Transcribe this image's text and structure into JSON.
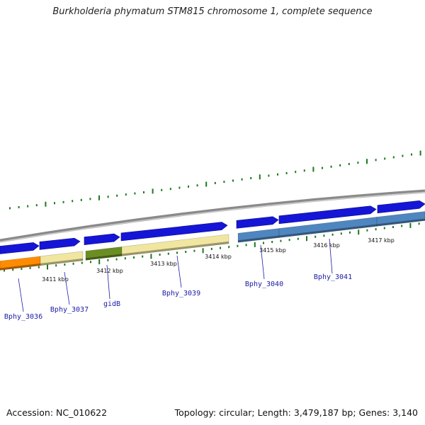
{
  "title": "Burkholderia phymatum STM815 chromosome 1, complete sequence",
  "footer": {
    "accession": "Accession: NC_010622",
    "summary": "Topology: circular; Length: 3,479,187 bp; Genes: 3,140"
  },
  "colors": {
    "backbone": "#8a8a8a",
    "forward_gene": "#1515d8",
    "orange": "#ff8c00",
    "pale_yellow": "#f0e6a0",
    "olive": "#6b8e23",
    "steel_blue": "#4f86bf",
    "tick_green": "#1a7a1a",
    "label_blue": "#1a1aa6"
  },
  "scale": {
    "ticks": [
      {
        "kbp": 3411,
        "label": "3411 kbp"
      },
      {
        "kbp": 3412,
        "label": "3412 kbp"
      },
      {
        "kbp": 3413,
        "label": "3413 kbp"
      },
      {
        "kbp": 3414,
        "label": "3414 kbp"
      },
      {
        "kbp": 3415,
        "label": "3415 kbp"
      },
      {
        "kbp": 3416,
        "label": "3416 kbp"
      },
      {
        "kbp": 3417,
        "label": "3417 kbp"
      }
    ]
  },
  "gene_labels": [
    {
      "name": "Bphy_3036"
    },
    {
      "name": "Bphy_3037"
    },
    {
      "name": "gidB"
    },
    {
      "name": "Bphy_3039"
    },
    {
      "name": "Bphy_3040"
    },
    {
      "name": "Bphy_3041"
    }
  ]
}
